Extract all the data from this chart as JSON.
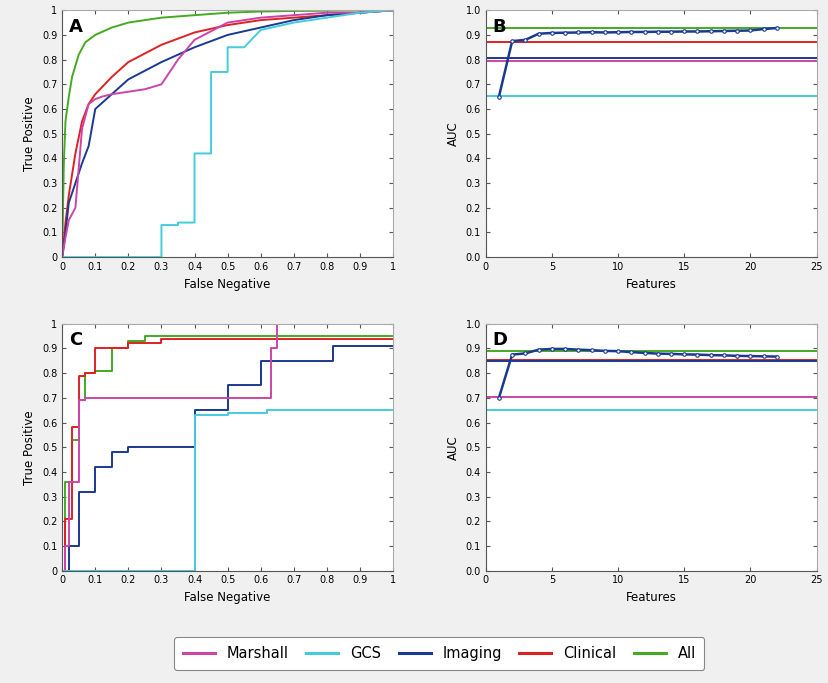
{
  "colors": {
    "marshall": "#cc44aa",
    "gcs": "#44ccdd",
    "imaging": "#1a3a8f",
    "clinical": "#dd2222",
    "all": "#44aa22"
  },
  "panel_A": {
    "marshall": {
      "x": [
        0,
        0.01,
        0.02,
        0.04,
        0.06,
        0.08,
        0.1,
        0.12,
        0.15,
        0.2,
        0.25,
        0.3,
        0.35,
        0.4,
        0.5,
        0.6,
        0.7,
        0.8,
        0.9,
        1.0
      ],
      "y": [
        0,
        0.08,
        0.15,
        0.2,
        0.52,
        0.62,
        0.64,
        0.65,
        0.66,
        0.67,
        0.68,
        0.7,
        0.8,
        0.88,
        0.95,
        0.97,
        0.98,
        0.99,
        0.99,
        1.0
      ]
    },
    "gcs": {
      "x": [
        0,
        0.0,
        0.3,
        0.3,
        0.35,
        0.35,
        0.4,
        0.4,
        0.45,
        0.45,
        0.5,
        0.5,
        0.55,
        0.6,
        0.7,
        0.8,
        0.9,
        1.0
      ],
      "y": [
        0,
        0.0,
        0.0,
        0.13,
        0.13,
        0.14,
        0.14,
        0.42,
        0.42,
        0.75,
        0.75,
        0.85,
        0.85,
        0.92,
        0.95,
        0.97,
        0.99,
        1.0
      ]
    },
    "imaging": {
      "x": [
        0,
        0.01,
        0.02,
        0.04,
        0.06,
        0.08,
        0.1,
        0.15,
        0.2,
        0.3,
        0.4,
        0.5,
        0.6,
        0.7,
        0.8,
        0.9,
        1.0
      ],
      "y": [
        0,
        0.1,
        0.22,
        0.3,
        0.38,
        0.45,
        0.6,
        0.66,
        0.72,
        0.79,
        0.85,
        0.9,
        0.93,
        0.96,
        0.98,
        0.99,
        1.0
      ]
    },
    "clinical": {
      "x": [
        0,
        0.01,
        0.02,
        0.04,
        0.06,
        0.08,
        0.1,
        0.15,
        0.2,
        0.3,
        0.4,
        0.5,
        0.6,
        0.7,
        0.8,
        0.9,
        1.0
      ],
      "y": [
        0,
        0.14,
        0.25,
        0.42,
        0.55,
        0.62,
        0.66,
        0.73,
        0.79,
        0.86,
        0.91,
        0.94,
        0.96,
        0.97,
        0.98,
        0.99,
        1.0
      ]
    },
    "all": {
      "x": [
        0,
        0.005,
        0.01,
        0.02,
        0.03,
        0.05,
        0.07,
        0.1,
        0.15,
        0.2,
        0.3,
        0.4,
        0.5,
        0.6,
        0.7,
        0.8,
        0.9,
        1.0
      ],
      "y": [
        0,
        0.38,
        0.55,
        0.65,
        0.73,
        0.82,
        0.87,
        0.9,
        0.93,
        0.95,
        0.97,
        0.98,
        0.99,
        0.995,
        0.997,
        0.998,
        0.999,
        1.0
      ]
    },
    "xlabel": "False Negative",
    "ylabel": "True Positive",
    "xlim": [
      0,
      1
    ],
    "ylim": [
      0,
      1
    ],
    "xticks": [
      0,
      0.1,
      0.2,
      0.3,
      0.4,
      0.5,
      0.6,
      0.7,
      0.8,
      0.9,
      1
    ],
    "yticks": [
      0,
      0.1,
      0.2,
      0.3,
      0.4,
      0.5,
      0.6,
      0.7,
      0.8,
      0.9,
      1
    ]
  },
  "panel_B": {
    "greedy_x": [
      1,
      2,
      3,
      4,
      5,
      6,
      7,
      8,
      9,
      10,
      11,
      12,
      13,
      14,
      15,
      16,
      17,
      18,
      19,
      20,
      21,
      22
    ],
    "greedy_y": [
      0.65,
      0.875,
      0.88,
      0.905,
      0.908,
      0.909,
      0.91,
      0.911,
      0.91,
      0.911,
      0.912,
      0.912,
      0.913,
      0.913,
      0.914,
      0.914,
      0.915,
      0.916,
      0.917,
      0.918,
      0.924,
      0.928
    ],
    "hlines": {
      "all": 0.928,
      "clinical": 0.873,
      "imaging": 0.808,
      "marshall": 0.795,
      "gcs": 0.652
    },
    "xlabel": "Features",
    "ylabel": "AUC",
    "xlim": [
      0,
      25
    ],
    "ylim": [
      0,
      1
    ],
    "xticks": [
      0,
      5,
      10,
      15,
      20,
      25
    ],
    "yticks": [
      0,
      0.1,
      0.2,
      0.3,
      0.4,
      0.5,
      0.6,
      0.7,
      0.8,
      0.9,
      1
    ]
  },
  "panel_C": {
    "marshall": {
      "x": [
        0,
        0.01,
        0.01,
        0.02,
        0.02,
        0.05,
        0.05,
        0.07,
        0.07,
        0.63,
        0.63,
        0.65,
        0.65,
        1.0
      ],
      "y": [
        0,
        0.0,
        0.1,
        0.1,
        0.36,
        0.36,
        0.69,
        0.69,
        0.7,
        0.7,
        0.9,
        0.9,
        1.0,
        1.0
      ]
    },
    "gcs": {
      "x": [
        0,
        0.4,
        0.4,
        0.5,
        0.5,
        0.62,
        0.62,
        1.0
      ],
      "y": [
        0,
        0.0,
        0.63,
        0.63,
        0.64,
        0.64,
        0.65,
        0.65
      ]
    },
    "imaging": {
      "x": [
        0,
        0.02,
        0.02,
        0.05,
        0.05,
        0.1,
        0.1,
        0.15,
        0.15,
        0.2,
        0.2,
        0.3,
        0.3,
        0.4,
        0.4,
        0.5,
        0.5,
        0.6,
        0.6,
        0.82,
        0.82,
        1.0
      ],
      "y": [
        0,
        0.0,
        0.1,
        0.1,
        0.32,
        0.32,
        0.42,
        0.42,
        0.48,
        0.48,
        0.5,
        0.5,
        0.5,
        0.5,
        0.65,
        0.65,
        0.75,
        0.75,
        0.85,
        0.85,
        0.91,
        0.91
      ]
    },
    "clinical": {
      "x": [
        0,
        0.01,
        0.01,
        0.03,
        0.03,
        0.05,
        0.05,
        0.07,
        0.07,
        0.1,
        0.1,
        0.2,
        0.2,
        0.3,
        0.3,
        1.0
      ],
      "y": [
        0,
        0.0,
        0.21,
        0.21,
        0.58,
        0.58,
        0.79,
        0.79,
        0.8,
        0.8,
        0.9,
        0.9,
        0.92,
        0.92,
        0.94,
        0.94
      ]
    },
    "all": {
      "x": [
        0,
        0.01,
        0.01,
        0.03,
        0.03,
        0.05,
        0.05,
        0.07,
        0.07,
        0.1,
        0.1,
        0.15,
        0.15,
        0.2,
        0.2,
        0.25,
        0.25,
        1.0
      ],
      "y": [
        0,
        0.0,
        0.36,
        0.36,
        0.53,
        0.53,
        0.69,
        0.69,
        0.8,
        0.8,
        0.81,
        0.81,
        0.9,
        0.9,
        0.93,
        0.93,
        0.95,
        0.95
      ]
    },
    "xlabel": "False Negative",
    "ylabel": "True Positive",
    "xlim": [
      0,
      1
    ],
    "ylim": [
      0,
      1
    ],
    "xticks": [
      0,
      0.1,
      0.2,
      0.3,
      0.4,
      0.5,
      0.6,
      0.7,
      0.8,
      0.9,
      1
    ],
    "yticks": [
      0,
      0.1,
      0.2,
      0.3,
      0.4,
      0.5,
      0.6,
      0.7,
      0.8,
      0.9,
      1
    ]
  },
  "panel_D": {
    "greedy_x": [
      1,
      2,
      3,
      4,
      5,
      6,
      7,
      8,
      9,
      10,
      11,
      12,
      13,
      14,
      15,
      16,
      17,
      18,
      19,
      20,
      21,
      22
    ],
    "greedy_y": [
      0.7,
      0.875,
      0.88,
      0.895,
      0.898,
      0.898,
      0.895,
      0.893,
      0.89,
      0.889,
      0.885,
      0.882,
      0.879,
      0.878,
      0.876,
      0.875,
      0.873,
      0.872,
      0.87,
      0.869,
      0.868,
      0.867
    ],
    "hlines": {
      "all": 0.888,
      "clinical": 0.853,
      "imaging": 0.848,
      "marshall": 0.702,
      "gcs": 0.652
    },
    "xlabel": "Features",
    "ylabel": "AUC",
    "xlim": [
      0,
      25
    ],
    "ylim": [
      0,
      1
    ],
    "xticks": [
      0,
      5,
      10,
      15,
      20,
      25
    ],
    "yticks": [
      0,
      0.1,
      0.2,
      0.3,
      0.4,
      0.5,
      0.6,
      0.7,
      0.8,
      0.9,
      1
    ]
  },
  "legend_labels": [
    "Marshall",
    "GCS",
    "Imaging",
    "Clinical",
    "All"
  ],
  "bg_color": "#f5f5f5",
  "panel_bg": "#ffffff"
}
